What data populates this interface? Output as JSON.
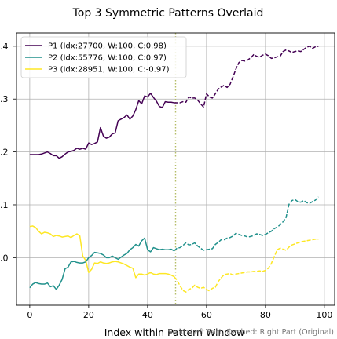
{
  "chart_data": {
    "type": "line",
    "title": "Top 3 Symmetric Patterns Overlaid",
    "xlabel": "Index within Pattern Window",
    "ylabel": "",
    "xlim": [
      -4.5,
      103.5
    ],
    "ylim": [
      -0.09,
      0.425
    ],
    "x_ticks": [
      0,
      20,
      40,
      60,
      80,
      100
    ],
    "x_tick_labels": [
      "0",
      "20",
      "40",
      "60",
      "80",
      "100"
    ],
    "y_ticks": [
      0.0,
      0.1,
      0.2,
      0.3,
      0.4
    ],
    "y_tick_labels": [
      ".0",
      ".1",
      ".2",
      ".3",
      ".4"
    ],
    "grid": true,
    "legend_position": "top-left",
    "divider_x": 49.5,
    "divider_color": "#b5bd68",
    "divider_note": "Solid: Left Part, Dashed: Right Part (Original)",
    "series": [
      {
        "name": "P1 (Idx:27700, W:100, C:0.98)",
        "color": "#440154",
        "values": [
          0.195,
          0.195,
          0.195,
          0.195,
          0.196,
          0.198,
          0.2,
          0.197,
          0.193,
          0.193,
          0.188,
          0.191,
          0.196,
          0.2,
          0.201,
          0.203,
          0.207,
          0.205,
          0.207,
          0.205,
          0.217,
          0.214,
          0.216,
          0.219,
          0.246,
          0.23,
          0.226,
          0.228,
          0.234,
          0.236,
          0.259,
          0.262,
          0.265,
          0.27,
          0.262,
          0.268,
          0.28,
          0.297,
          0.291,
          0.306,
          0.304,
          0.311,
          0.303,
          0.296,
          0.286,
          0.284,
          0.295,
          0.294,
          0.294,
          0.293,
          0.293,
          0.293,
          0.295,
          0.294,
          0.304,
          0.302,
          0.302,
          0.298,
          0.291,
          0.285,
          0.31,
          0.304,
          0.302,
          0.31,
          0.319,
          0.323,
          0.326,
          0.322,
          0.328,
          0.342,
          0.357,
          0.369,
          0.373,
          0.372,
          0.374,
          0.378,
          0.384,
          0.381,
          0.379,
          0.383,
          0.385,
          0.382,
          0.377,
          0.378,
          0.38,
          0.381,
          0.39,
          0.393,
          0.391,
          0.388,
          0.39,
          0.391,
          0.39,
          0.394,
          0.398,
          0.4,
          0.396,
          0.399,
          0.4
        ]
      },
      {
        "name": "P2 (Idx:55776, W:100, C:0.97)",
        "color": "#21918c",
        "values": [
          -0.057,
          -0.05,
          -0.047,
          -0.049,
          -0.05,
          -0.05,
          -0.048,
          -0.055,
          -0.053,
          -0.06,
          -0.052,
          -0.041,
          -0.021,
          -0.018,
          -0.008,
          -0.007,
          -0.009,
          -0.01,
          -0.01,
          -0.008,
          0.0,
          0.004,
          0.01,
          0.009,
          0.008,
          0.005,
          0.0,
          0.0,
          0.003,
          0.0,
          -0.003,
          0.001,
          0.005,
          0.008,
          0.015,
          0.019,
          0.025,
          0.022,
          0.032,
          0.037,
          0.015,
          0.011,
          0.019,
          0.017,
          0.015,
          0.016,
          0.015,
          0.015,
          0.016,
          0.013,
          0.018,
          0.019,
          0.023,
          0.028,
          0.024,
          0.025,
          0.028,
          0.022,
          0.018,
          0.014,
          0.015,
          0.016,
          0.017,
          0.025,
          0.029,
          0.034,
          0.034,
          0.037,
          0.038,
          0.041,
          0.046,
          0.044,
          0.042,
          0.041,
          0.039,
          0.04,
          0.042,
          0.045,
          0.044,
          0.042,
          0.044,
          0.047,
          0.05,
          0.055,
          0.058,
          0.062,
          0.068,
          0.076,
          0.101,
          0.108,
          0.11,
          0.106,
          0.105,
          0.108,
          0.104,
          0.103,
          0.106,
          0.109,
          0.115
        ]
      },
      {
        "name": "P3 (Idx:28951, W:100, C:-0.97)",
        "color": "#fde725",
        "values": [
          0.059,
          0.06,
          0.057,
          0.05,
          0.045,
          0.048,
          0.047,
          0.045,
          0.04,
          0.042,
          0.041,
          0.039,
          0.04,
          0.041,
          0.038,
          0.042,
          0.045,
          0.041,
          0.003,
          -0.005,
          -0.028,
          -0.022,
          -0.01,
          -0.011,
          -0.008,
          -0.01,
          -0.011,
          -0.01,
          -0.008,
          -0.007,
          -0.008,
          -0.01,
          -0.012,
          -0.015,
          -0.018,
          -0.02,
          -0.038,
          -0.031,
          -0.031,
          -0.033,
          -0.031,
          -0.028,
          -0.031,
          -0.032,
          -0.03,
          -0.03,
          -0.03,
          -0.031,
          -0.033,
          -0.036,
          -0.043,
          -0.053,
          -0.062,
          -0.065,
          -0.06,
          -0.058,
          -0.052,
          -0.056,
          -0.058,
          -0.056,
          -0.06,
          -0.063,
          -0.058,
          -0.056,
          -0.045,
          -0.038,
          -0.032,
          -0.031,
          -0.03,
          -0.033,
          -0.031,
          -0.03,
          -0.029,
          -0.028,
          -0.027,
          -0.027,
          -0.026,
          -0.026,
          -0.025,
          -0.026,
          -0.024,
          -0.02,
          -0.011,
          0.002,
          0.015,
          0.018,
          0.016,
          0.014,
          0.02,
          0.024,
          0.026,
          0.028,
          0.03,
          0.031,
          0.032,
          0.033,
          0.034,
          0.035,
          0.035
        ]
      }
    ]
  }
}
